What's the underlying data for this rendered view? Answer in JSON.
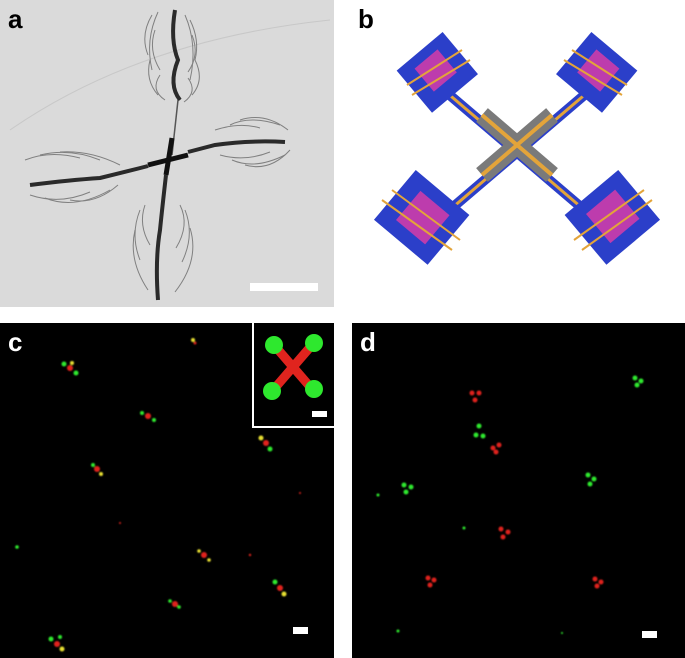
{
  "figure": {
    "panels": [
      {
        "id": "a",
        "label": "a",
        "kind": "transmission electron micrograph of a four-armed DNA origami cross with brush-like arm bundles"
      },
      {
        "id": "b",
        "label": "b",
        "kind": "3D model rendering of the cross structure"
      },
      {
        "id": "c",
        "label": "c",
        "kind": "fluorescence image, red cross cores with green arm tips, with zoomed inset"
      },
      {
        "id": "d",
        "label": "d",
        "kind": "fluorescence image, separated red and green dot clusters"
      }
    ],
    "colors": {
      "tem_background": "#dcdcdc",
      "tem_structure": "#2a2a2a",
      "model_blue": "#2b3fc9",
      "model_orange": "#e3a43a",
      "model_magenta": "#e23ca6",
      "model_gray": "#7a7a7a",
      "fluor_red": "#e0241e",
      "fluor_green": "#2ee82e",
      "fluor_yellow": "#e8e030",
      "scalebar": "#ffffff"
    }
  }
}
